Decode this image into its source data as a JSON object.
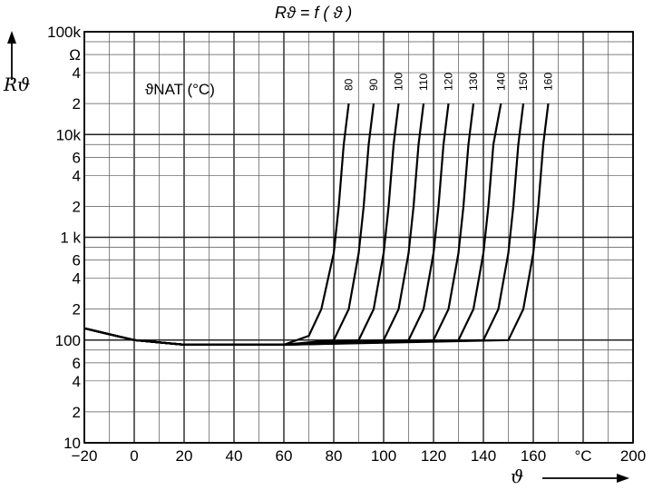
{
  "chart_data": {
    "type": "line",
    "title": "Rϑ = f ( ϑ )",
    "ylabel": "Rϑ",
    "xlabel": "ϑ",
    "x_unit": "°C",
    "y_unit": "Ω",
    "legend_title": "ϑNAT (°C)",
    "y_scale": "log",
    "xlim": [
      -20,
      200
    ],
    "ylim": [
      10,
      100000
    ],
    "x_ticks": [
      "−20",
      "0",
      "20",
      "40",
      "60",
      "80",
      "100",
      "120",
      "140",
      "160",
      "°C",
      "200"
    ],
    "x_tick_values": [
      -20,
      0,
      20,
      40,
      60,
      80,
      100,
      120,
      140,
      160,
      180,
      200
    ],
    "y_ticks": [
      "100k",
      "Ω",
      "4",
      "2",
      "10k",
      "6",
      "4",
      "2",
      "1 k",
      "6",
      "4",
      "2",
      "100",
      "6",
      "4",
      "2",
      "10"
    ],
    "y_tick_values": [
      100000,
      60000,
      40000,
      20000,
      10000,
      6000,
      4000,
      2000,
      1000,
      600,
      400,
      200,
      100,
      60,
      40,
      20,
      10
    ],
    "grid": true,
    "series": [
      {
        "name": "80",
        "x": [
          -20,
          0,
          20,
          40,
          60,
          70,
          75,
          80,
          82,
          84,
          86
        ],
        "y": [
          130,
          100,
          90,
          90,
          90,
          110,
          200,
          700,
          2000,
          8000,
          20000
        ]
      },
      {
        "name": "90",
        "x": [
          -20,
          0,
          20,
          40,
          60,
          80,
          86,
          90,
          92,
          94,
          96
        ],
        "y": [
          130,
          100,
          90,
          90,
          90,
          100,
          200,
          700,
          2000,
          8000,
          20000
        ]
      },
      {
        "name": "100",
        "x": [
          -20,
          0,
          20,
          40,
          60,
          90,
          96,
          100,
          102,
          104,
          106
        ],
        "y": [
          130,
          100,
          90,
          90,
          90,
          100,
          200,
          700,
          2000,
          8000,
          20000
        ]
      },
      {
        "name": "110",
        "x": [
          -20,
          0,
          20,
          40,
          60,
          100,
          106,
          110,
          112,
          114,
          116
        ],
        "y": [
          130,
          100,
          90,
          90,
          90,
          100,
          200,
          700,
          2000,
          8000,
          20000
        ]
      },
      {
        "name": "120",
        "x": [
          -20,
          0,
          20,
          40,
          60,
          110,
          116,
          120,
          122,
          124,
          126
        ],
        "y": [
          130,
          100,
          90,
          90,
          90,
          100,
          200,
          700,
          2000,
          8000,
          20000
        ]
      },
      {
        "name": "130",
        "x": [
          -20,
          0,
          20,
          40,
          60,
          120,
          126,
          130,
          132,
          134,
          136
        ],
        "y": [
          130,
          100,
          90,
          90,
          90,
          100,
          200,
          700,
          2000,
          8000,
          20000
        ]
      },
      {
        "name": "140",
        "x": [
          -20,
          0,
          20,
          40,
          60,
          130,
          136,
          140,
          142,
          144,
          147
        ],
        "y": [
          130,
          100,
          90,
          90,
          90,
          100,
          200,
          700,
          2000,
          8000,
          20000
        ]
      },
      {
        "name": "150",
        "x": [
          -20,
          0,
          20,
          40,
          60,
          140,
          146,
          150,
          152,
          154,
          156
        ],
        "y": [
          130,
          100,
          90,
          90,
          90,
          100,
          200,
          700,
          2000,
          8000,
          20000
        ]
      },
      {
        "name": "160",
        "x": [
          -20,
          0,
          20,
          40,
          60,
          150,
          156,
          160,
          162,
          164,
          166
        ],
        "y": [
          130,
          100,
          90,
          90,
          90,
          100,
          200,
          700,
          2000,
          8000,
          20000
        ]
      }
    ]
  }
}
